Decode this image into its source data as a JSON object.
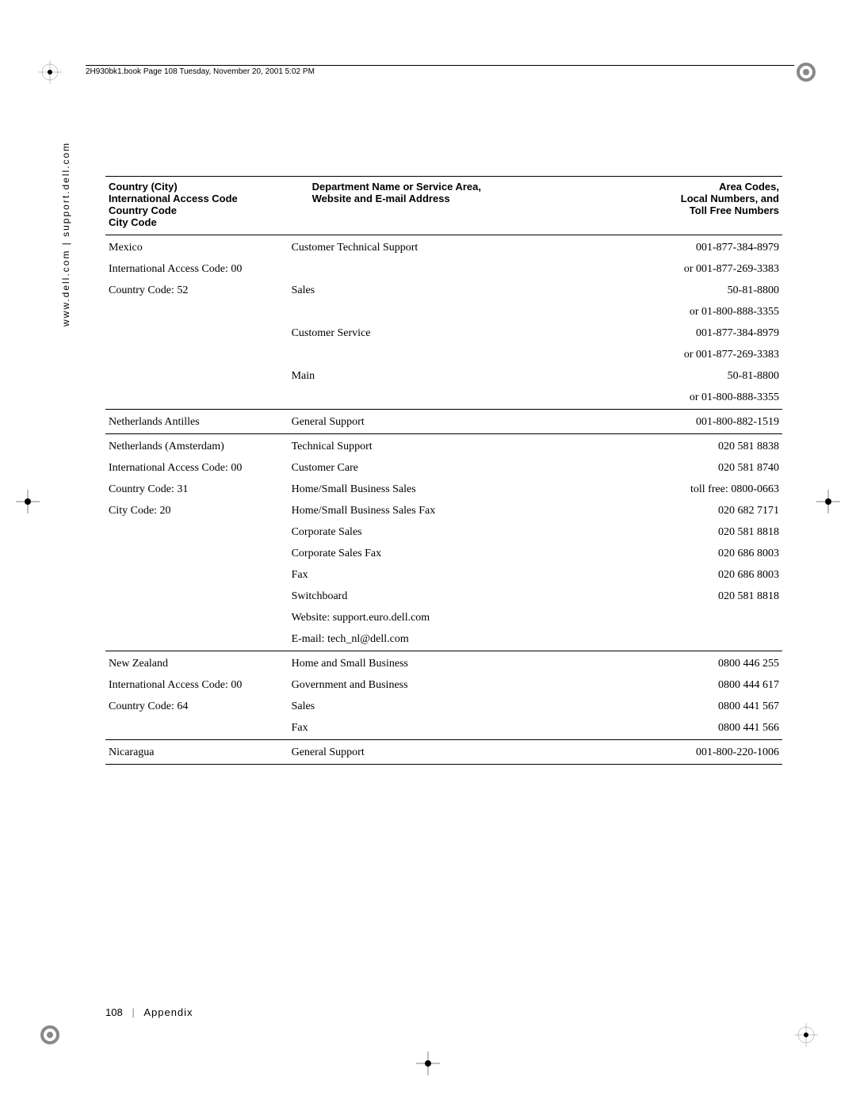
{
  "header_text": "2H930bk1.book  Page 108  Tuesday, November 20, 2001  5:02 PM",
  "sidebar_text": "www.dell.com | support.dell.com",
  "table": {
    "headers": {
      "col1": "Country (City)\nInternational Access Code\nCountry Code\nCity Code",
      "col2": "Department Name or Service Area,\nWebsite and E-mail Address",
      "col3": "Area Codes,\nLocal Numbers, and\nToll Free Numbers"
    },
    "sections": [
      {
        "left": [
          "Mexico",
          "International Access Code: 00",
          "Country Code: 52",
          "",
          "",
          "",
          "",
          ""
        ],
        "mid": [
          "Customer Technical Support",
          "",
          "Sales",
          "",
          "Customer Service",
          "",
          "Main",
          ""
        ],
        "right": [
          "001-877-384-8979",
          "or 001-877-269-3383",
          "50-81-8800",
          "or 01-800-888-3355",
          "001-877-384-8979",
          "or 001-877-269-3383",
          "50-81-8800",
          "or 01-800-888-3355"
        ]
      },
      {
        "left": [
          "Netherlands Antilles"
        ],
        "mid": [
          "General Support"
        ],
        "right": [
          "001-800-882-1519"
        ]
      },
      {
        "left": [
          "Netherlands (Amsterdam)",
          "International Access Code: 00",
          "Country Code: 31",
          "City Code: 20",
          "",
          "",
          "",
          "",
          "",
          ""
        ],
        "mid": [
          "Technical Support",
          "Customer Care",
          "Home/Small Business Sales",
          "Home/Small Business Sales Fax",
          "Corporate Sales",
          "Corporate Sales Fax",
          "Fax",
          "Switchboard",
          "Website: support.euro.dell.com",
          "E-mail: tech_nl@dell.com"
        ],
        "right": [
          "020 581 8838",
          "020 581 8740",
          "toll free: 0800-0663",
          "020 682 7171",
          "020 581 8818",
          "020 686 8003",
          "020 686 8003",
          "020 581 8818",
          "",
          ""
        ]
      },
      {
        "left": [
          "New Zealand",
          "International Access Code: 00",
          "Country Code: 64",
          ""
        ],
        "mid": [
          "Home and Small Business",
          "Government and Business",
          "Sales",
          "Fax"
        ],
        "right": [
          "0800 446 255",
          "0800 444 617",
          "0800 441 567",
          "0800 441 566"
        ]
      },
      {
        "left": [
          "Nicaragua"
        ],
        "mid": [
          "General Support"
        ],
        "right": [
          "001-800-220-1006"
        ]
      }
    ]
  },
  "footer": {
    "page": "108",
    "separator": "|",
    "section": "Appendix"
  }
}
